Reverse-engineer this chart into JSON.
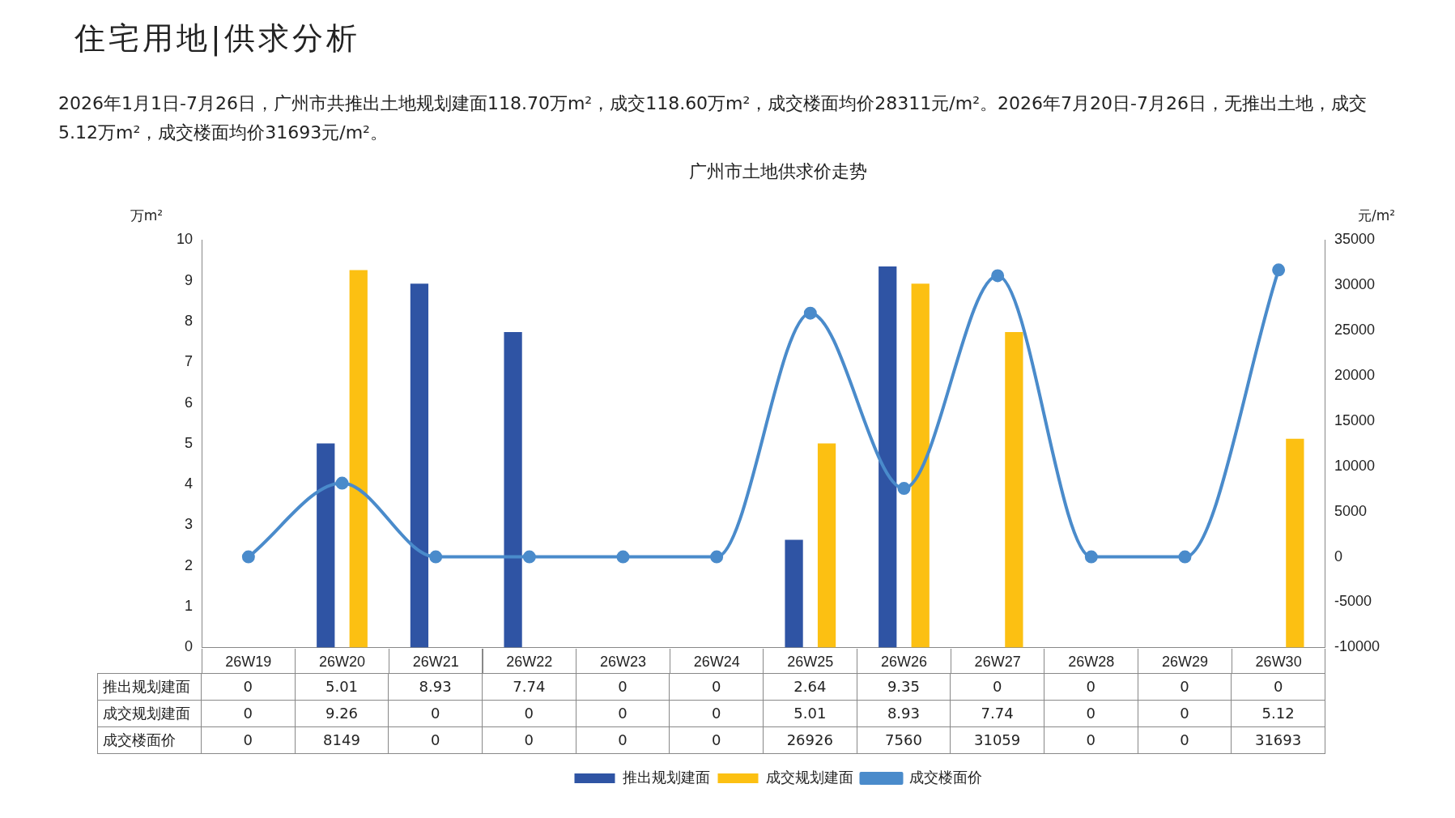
{
  "chart_data": {
    "type": "bar",
    "title": "广州市土地供求价走势",
    "ylabel": "万m²",
    "y2label": "元/m²",
    "annotations": [
      "住宅用地|供求分析",
      "2026年1月1日-7月26日，广州市共推出土地规划建面118.70万m²，成交118.60万m²，成交楼面均价28311元/m²。2026年7月20日-7月26日，无推出土地，成交5.12万m²，成交楼面均价31693元/m²。"
    ],
    "categories": [
      "26W19",
      "26W20",
      "26W21",
      "26W22",
      "26W23",
      "26W24",
      "26W25",
      "26W26",
      "26W27",
      "26W28",
      "26W29",
      "26W30"
    ],
    "series": [
      {
        "name": "推出规划建面",
        "color": "#2f54a4",
        "values": [
          0,
          5.01,
          8.93,
          7.74,
          0,
          0,
          2.64,
          9.35,
          0,
          0,
          0,
          0
        ]
      },
      {
        "name": "成交规划建面",
        "color": "#fcc012",
        "values": [
          0,
          9.26,
          0,
          0,
          0,
          0,
          5.01,
          8.93,
          7.74,
          0,
          0,
          5.12
        ]
      },
      {
        "name": "成交楼面价",
        "type": "line",
        "axis": "y2",
        "color": "#4a8bcb",
        "values": [
          0,
          8149,
          0,
          0,
          0,
          0,
          26926,
          7560,
          31059,
          0,
          0,
          31693
        ]
      }
    ],
    "ylim": [
      0,
      10
    ],
    "yticks": [
      0,
      1,
      2,
      3,
      4,
      5,
      6,
      7,
      8,
      9,
      10
    ],
    "y2lim": [
      -10000,
      35000
    ],
    "y2ticks": [
      -10000,
      -5000,
      0,
      5000,
      10000,
      15000,
      20000,
      25000,
      30000,
      35000
    ],
    "data_labels": true,
    "legend": "bottom",
    "marker": "circle",
    "grid": false
  }
}
